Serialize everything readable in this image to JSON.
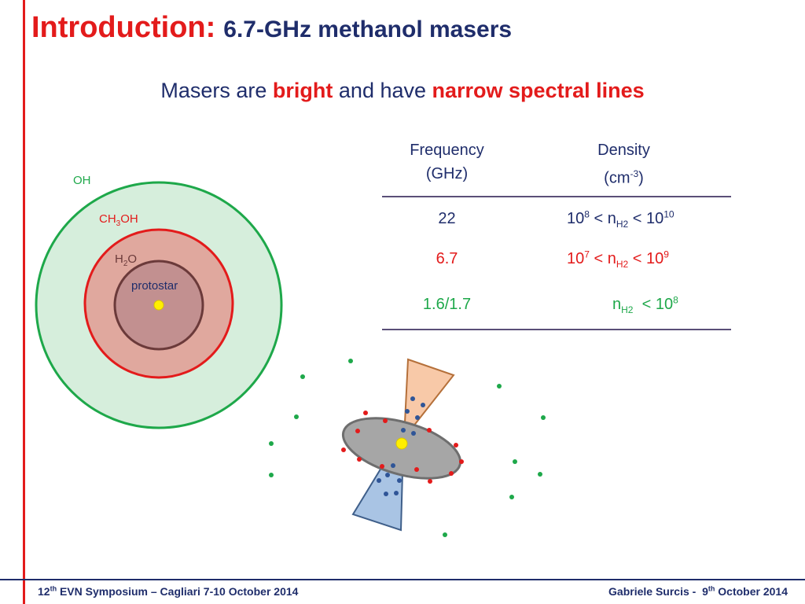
{
  "title": {
    "intro": "Introduction:",
    "topic": "6.7-GHz methanol masers"
  },
  "subtitle": {
    "pre": "Masers are ",
    "bright": "bright",
    "mid": " and have ",
    "narrow": "narrow spectral lines"
  },
  "table": {
    "headers": [
      {
        "line1": "Frequency",
        "line2": "(GHz)"
      },
      {
        "line1": "Density",
        "line2_pre": "(cm",
        "line2_sup": "-3",
        "line2_post": ")"
      }
    ],
    "rows": [
      {
        "freq": "22",
        "d_base1": "10",
        "d_exp1": "8",
        "d_lt1": " < n",
        "d_sub": "H2",
        "d_lt2": " < 10",
        "d_exp2": "10",
        "color": "#1f2d6b"
      },
      {
        "freq": "6.7",
        "d_base1": "10",
        "d_exp1": "7",
        "d_lt1": " < n",
        "d_sub": "H2",
        "d_lt2": " < 10",
        "d_exp2": "9",
        "color": "#e31b1b"
      },
      {
        "freq": "1.6/1.7",
        "d_n": "n",
        "d_sub": "H2",
        "d_lt2": "  < 10",
        "d_exp2": "8",
        "color": "#1ea84a"
      }
    ]
  },
  "diagram": {
    "labels": {
      "oh": "OH",
      "ch3oh_a": "CH",
      "ch3oh_sub": "3",
      "ch3oh_b": "OH",
      "h2o_a": "H",
      "h2o_sub": "2",
      "h2o_b": "O",
      "protostar": "protostar"
    },
    "colors": {
      "oh": "#1ea84a",
      "ch3oh": "#e31b1b",
      "h2o": "#6b3a3a",
      "protostar_text": "#1f2d6b",
      "star": "#ffef00",
      "disk": "#a6a6a6",
      "outflow_red": "#f8c9a8",
      "outflow_blue": "#a9c4e4"
    }
  },
  "footer": {
    "left_pre": "12",
    "left_sup": "th",
    "left_post": " EVN Symposium – Cagliari 7-10 October 2014",
    "right_pre": "Gabriele Surcis -  9",
    "right_sup": "th",
    "right_post": " October 2014"
  }
}
